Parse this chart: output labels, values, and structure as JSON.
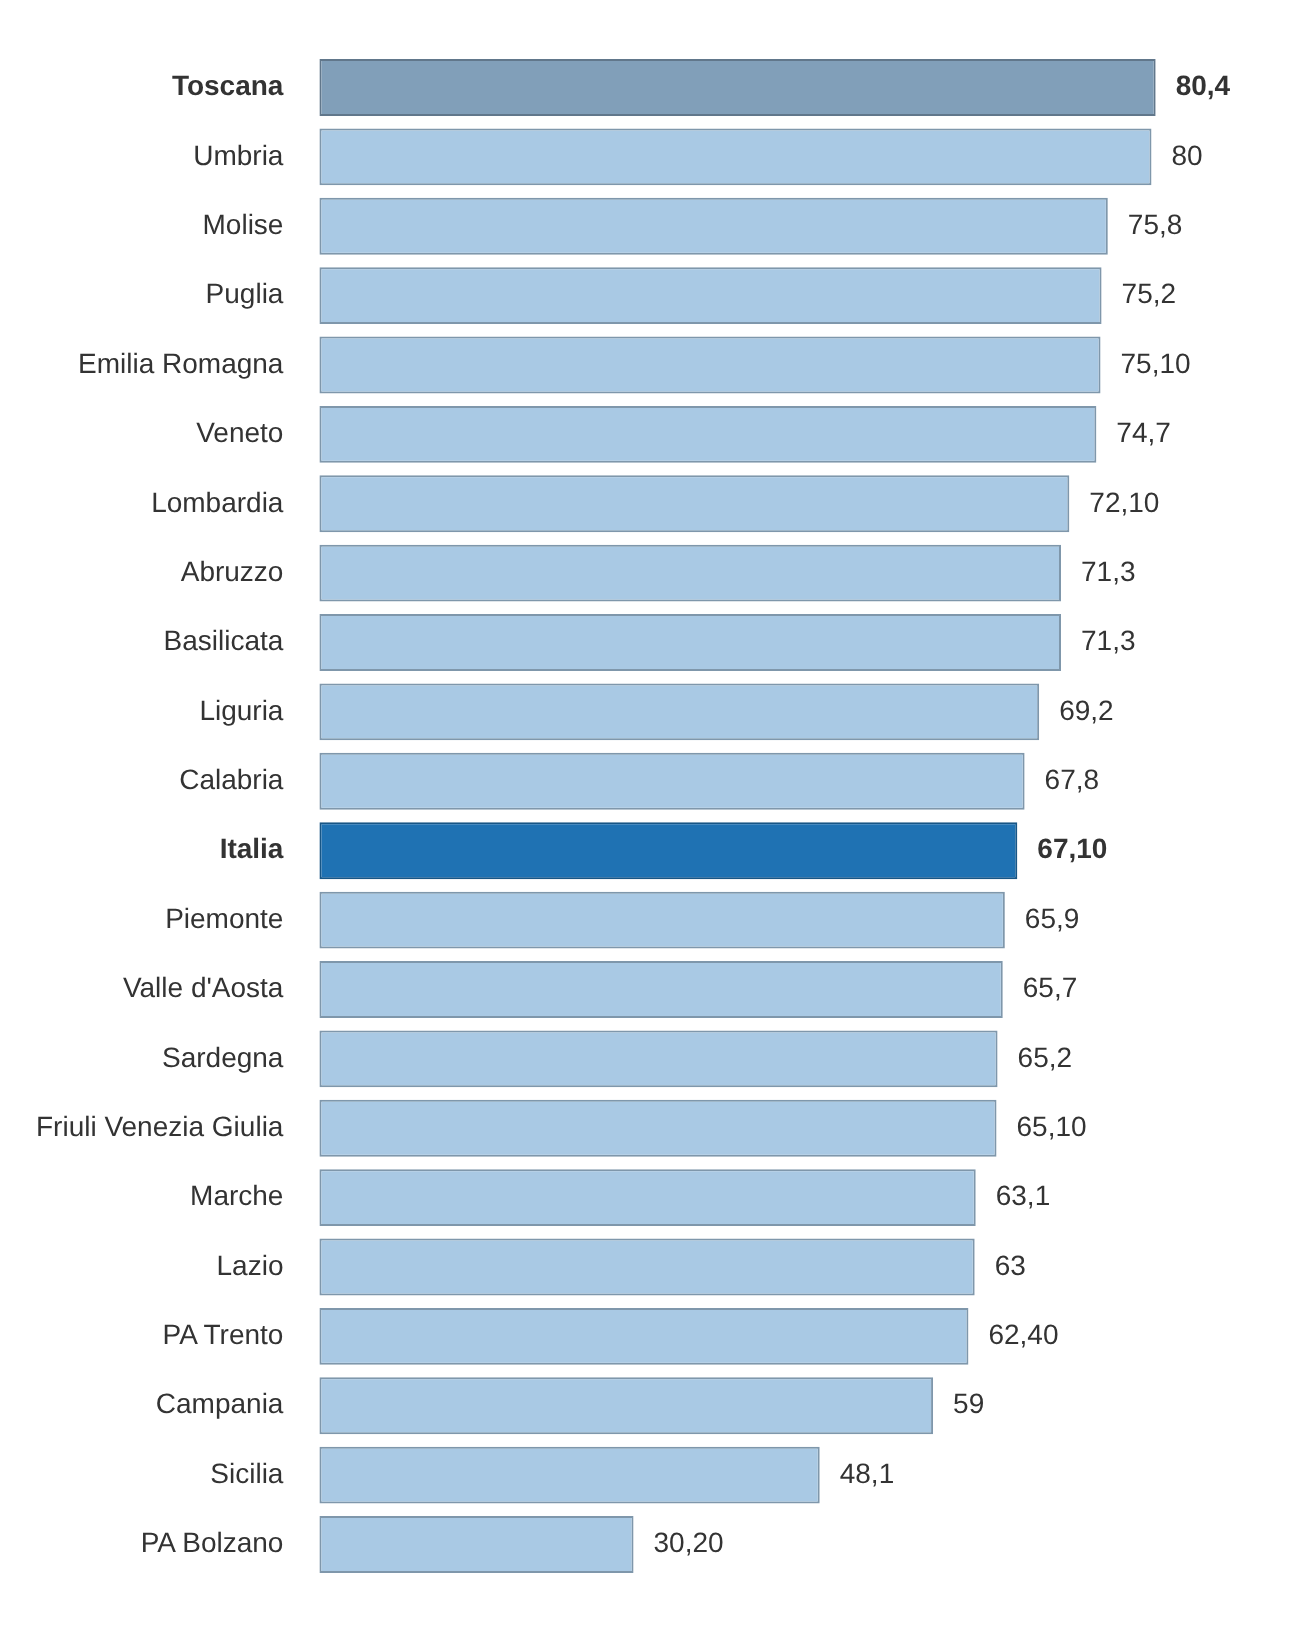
{
  "chart_data": {
    "type": "bar",
    "orientation": "horizontal",
    "tick_labels": "y",
    "grid": false,
    "legend": false,
    "categories": [
      "Toscana",
      "Umbria",
      "Molise",
      "Puglia",
      "Emilia Romagna",
      "Veneto",
      "Lombardia",
      "Abruzzo",
      "Basilicata",
      "Liguria",
      "Calabria",
      "Italia",
      "Piemonte",
      "Valle d'Aosta",
      "Sardegna",
      "Friuli Venezia Giulia",
      "Marche",
      "Lazio",
      "PA Trento",
      "Campania",
      "Sicilia",
      "PA Bolzano"
    ],
    "values": [
      80.4,
      80,
      75.8,
      75.2,
      75.1,
      74.7,
      72.1,
      71.3,
      71.3,
      69.2,
      67.8,
      67.1,
      65.9,
      65.7,
      65.2,
      65.1,
      63.1,
      63,
      62.4,
      59,
      48.1,
      30.2
    ],
    "value_labels": [
      "80,4",
      "80",
      "75,8",
      "75,2",
      "75,10",
      "74,7",
      "72,10",
      "71,3",
      "71,3",
      "69,2",
      "67,8",
      "67,10",
      "65,9",
      "65,7",
      "65,2",
      "65,10",
      "63,1",
      "63",
      "62,40",
      "59",
      "48,1",
      "30,20"
    ],
    "colors": [
      "#819fb9",
      "#a9c9e4",
      "#a9c9e4",
      "#a9c9e4",
      "#a9c9e4",
      "#a9c9e4",
      "#a9c9e4",
      "#a9c9e4",
      "#a9c9e4",
      "#a9c9e4",
      "#a9c9e4",
      "#1f72b3",
      "#a9c9e4",
      "#a9c9e4",
      "#a9c9e4",
      "#a9c9e4",
      "#a9c9e4",
      "#a9c9e4",
      "#a9c9e4",
      "#a9c9e4",
      "#a9c9e4",
      "#a9c9e4"
    ]
  }
}
